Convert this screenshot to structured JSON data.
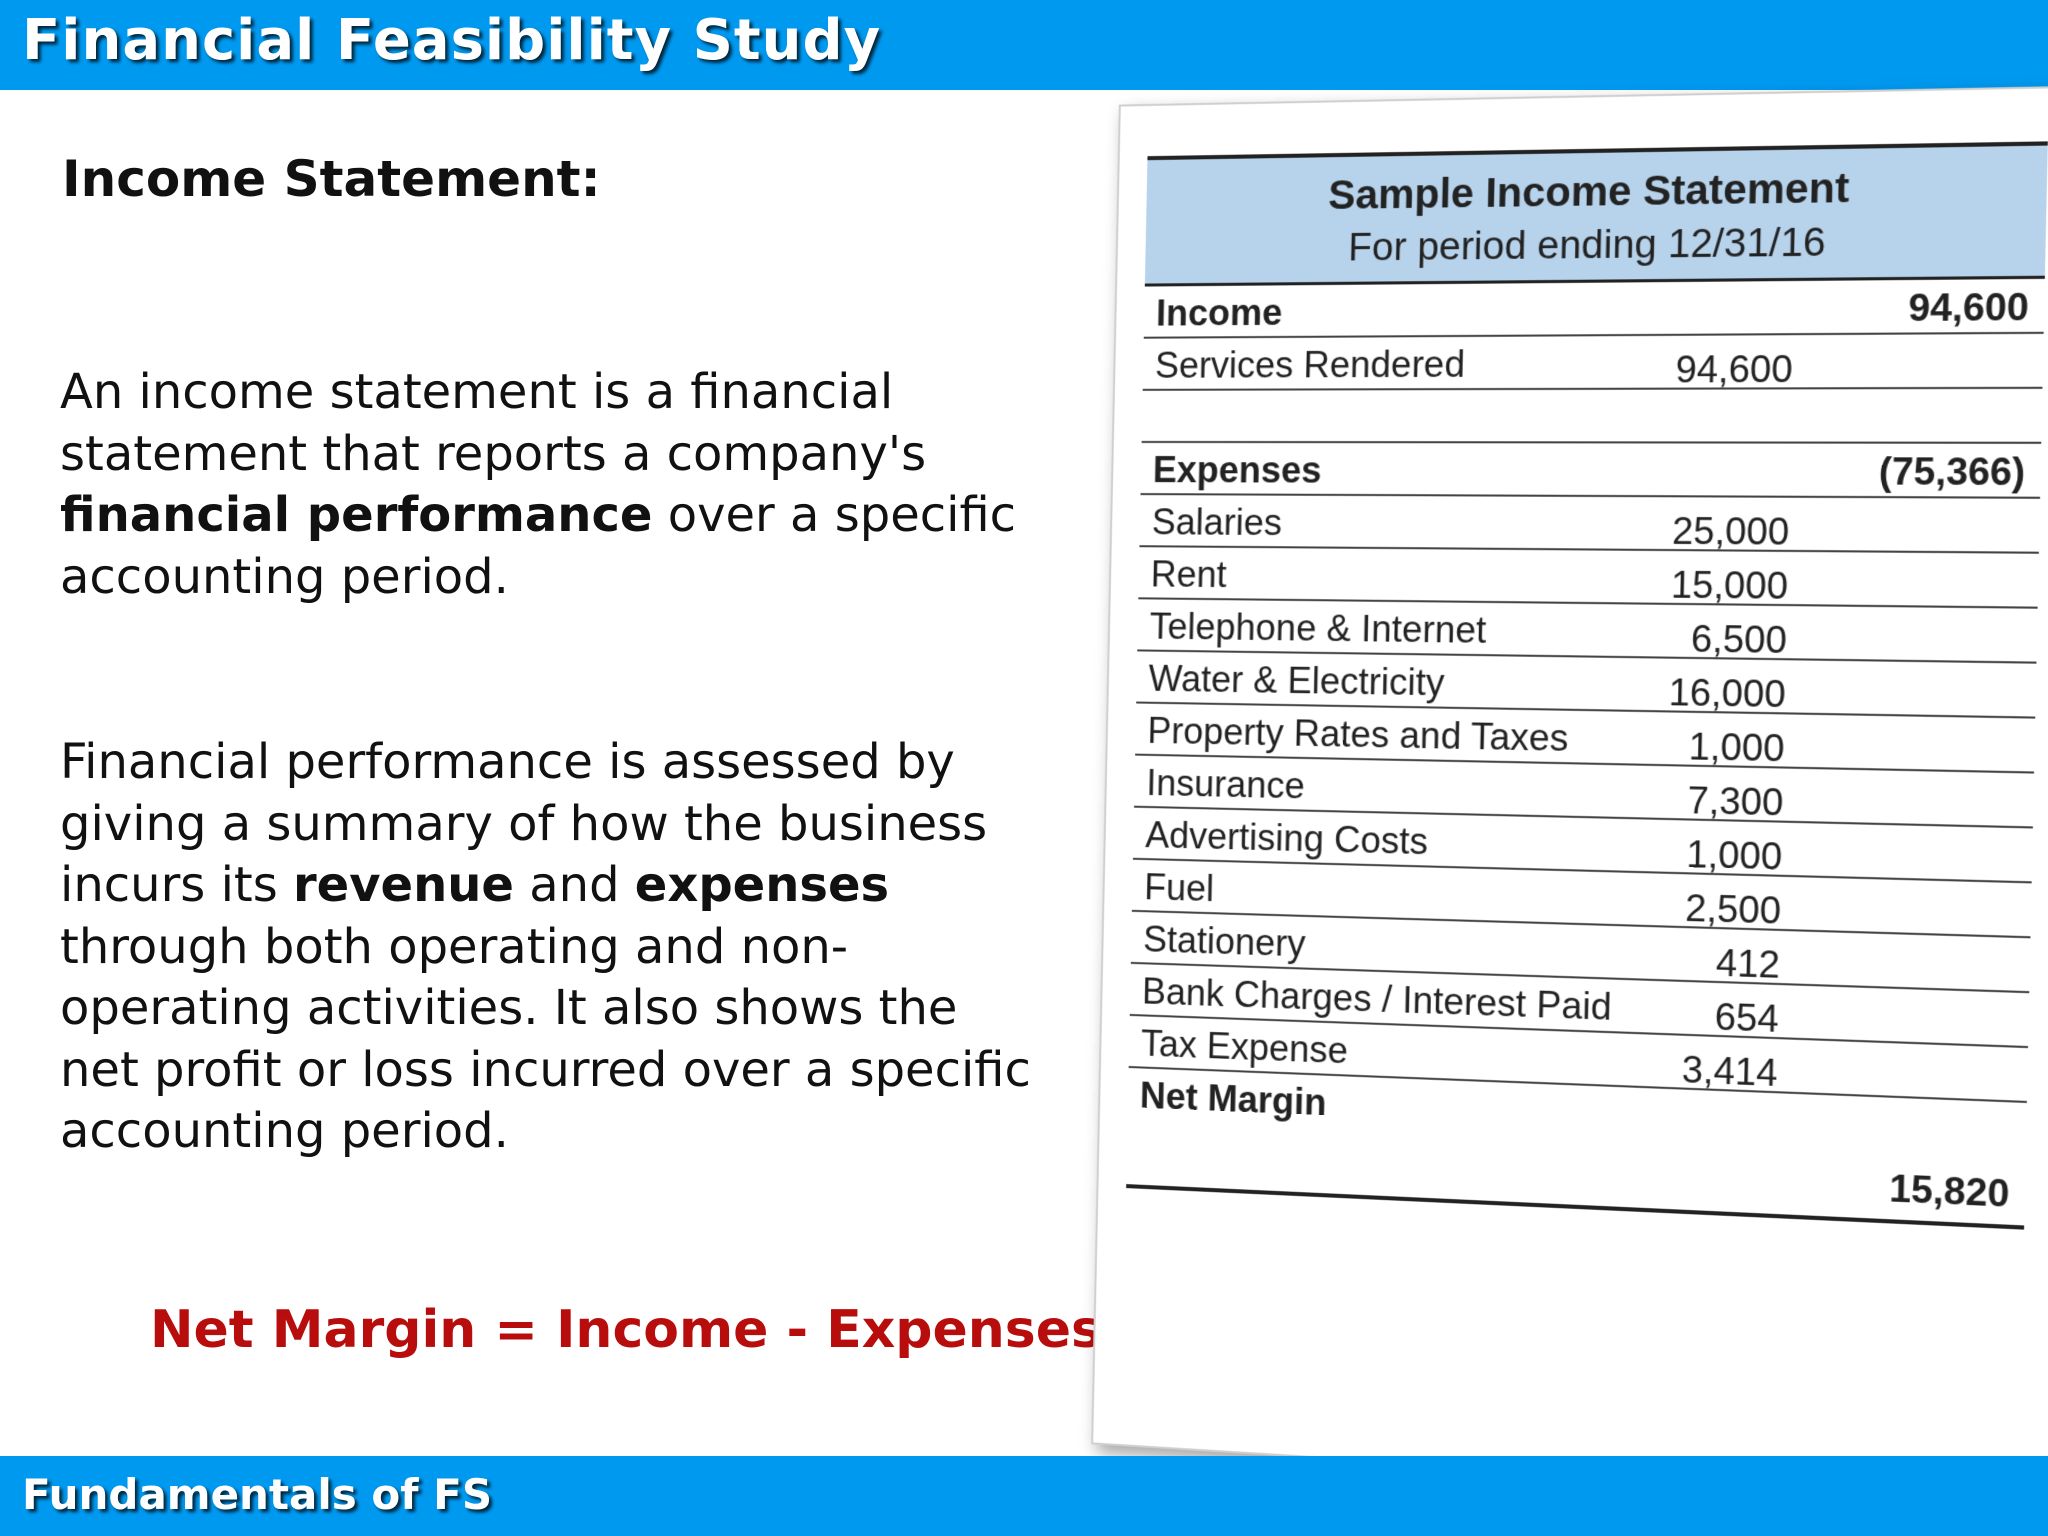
{
  "header": {
    "title": "Financial Feasibility Study"
  },
  "footer": {
    "title": "Fundamentals of FS"
  },
  "content": {
    "heading": "Income Statement:",
    "para1": {
      "part1": "An income statement is a financial statement that reports a company's ",
      "bold1": "financial performance",
      "part2": " over a specific accounting period."
    },
    "para2": {
      "part1": "Financial performance is assessed by giving a summary of how the business incurs its ",
      "bold1": "revenue",
      "part2": " and ",
      "bold2": "expenses",
      "part3": " through both operating and non-operating activities. It also shows the net profit or loss incurred over a specific accounting period."
    },
    "formula": "Net Margin = Income - Expenses"
  },
  "statement": {
    "title": "Sample Income Statement",
    "subtitle": "For period ending 12/31/16",
    "income_label": "Income",
    "income_total": "94,600",
    "services_label": "Services Rendered",
    "services_amount": "94,600",
    "expenses_label": "Expenses",
    "expenses_total": "(75,366)",
    "expense_items": [
      {
        "label": "Salaries",
        "amount": "25,000"
      },
      {
        "label": "Rent",
        "amount": "15,000"
      },
      {
        "label": "Telephone & Internet",
        "amount": "6,500"
      },
      {
        "label": "Water & Electricity",
        "amount": "16,000"
      },
      {
        "label": "Property Rates and Taxes",
        "amount": "1,000"
      },
      {
        "label": "Insurance",
        "amount": "7,300"
      },
      {
        "label": "Advertising Costs",
        "amount": "1,000"
      },
      {
        "label": "Fuel",
        "amount": "2,500"
      },
      {
        "label": "Stationery",
        "amount": "412"
      },
      {
        "label": "Bank Charges / Interest Paid",
        "amount": "654"
      },
      {
        "label": "Tax Expense",
        "amount": "3,414"
      }
    ],
    "net_margin_label": "Net Margin",
    "net_margin_total": "15,820"
  }
}
